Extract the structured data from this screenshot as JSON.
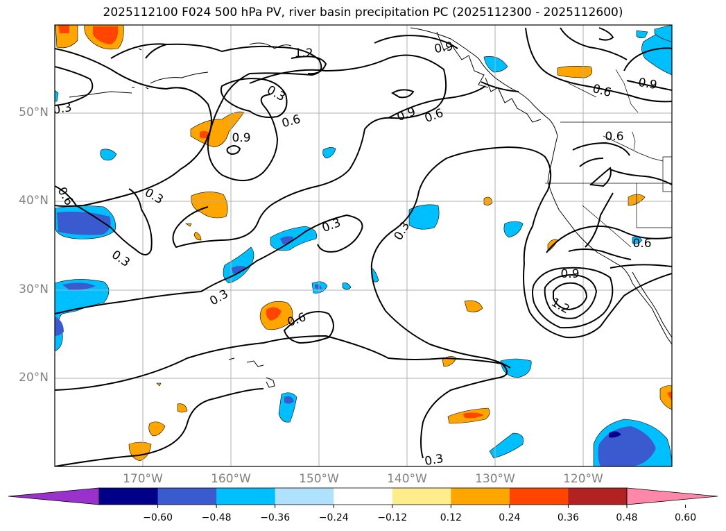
{
  "title": "2025112100 F024 500 hPa PV, river basin precipitation PC (2025112300 - 2025112600)",
  "lat_labels": [
    {
      "text": "50°N",
      "lat": 50
    },
    {
      "text": "40°N",
      "lat": 40
    },
    {
      "text": "30°N",
      "lat": 30
    },
    {
      "text": "20°N",
      "lat": 20
    }
  ],
  "lon_labels": [
    {
      "text": "170°W",
      "lon": -170
    },
    {
      "text": "160°W",
      "lon": -160
    },
    {
      "text": "150°W",
      "lon": -150
    },
    {
      "text": "140°W",
      "lon": -140
    },
    {
      "text": "130°W",
      "lon": -130
    },
    {
      "text": "120°W",
      "lon": -120
    }
  ],
  "contour_labels": [
    "0.3",
    "0.6",
    "0.9",
    "1.2"
  ],
  "colorbar": {
    "ticks": [
      "−0.60",
      "−0.48",
      "−0.36",
      "−0.24",
      "−0.12",
      "0.12",
      "0.24",
      "0.36",
      "0.48",
      "0.60"
    ],
    "colors": [
      "#9932cc",
      "#00008b",
      "#3a5bd0",
      "#00bfff",
      "#b0e2ff",
      "#ffffff",
      "#ffec8b",
      "#ffa500",
      "#ff4500",
      "#b22222",
      "#ff88aa"
    ]
  }
}
